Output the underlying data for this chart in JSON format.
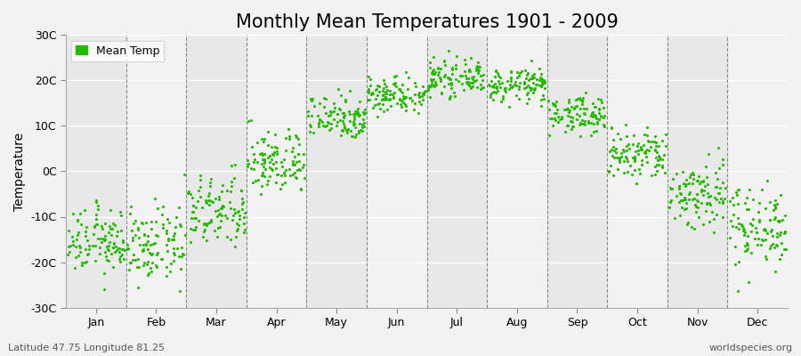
{
  "title": "Monthly Mean Temperatures 1901 - 2009",
  "ylabel": "Temperature",
  "xlabel_labels": [
    "Jan",
    "Feb",
    "Mar",
    "Apr",
    "May",
    "Jun",
    "Jul",
    "Aug",
    "Sep",
    "Oct",
    "Nov",
    "Dec"
  ],
  "ytick_labels": [
    "-30C",
    "-20C",
    "-10C",
    "0C",
    "10C",
    "20C",
    "30C"
  ],
  "ytick_values": [
    -30,
    -20,
    -10,
    0,
    10,
    20,
    30
  ],
  "ylim": [
    -30,
    30
  ],
  "xlim": [
    0,
    12
  ],
  "marker_color": "#22bb00",
  "background_color": "#f2f2f2",
  "band_colors": [
    "#e8e8e8",
    "#f2f2f2"
  ],
  "dashed_line_color": "#888888",
  "legend_label": "Mean Temp",
  "footer_left": "Latitude 47.75 Longitude 81.25",
  "footer_right": "worldspecies.org",
  "title_fontsize": 15,
  "label_fontsize": 10,
  "tick_fontsize": 9,
  "footer_fontsize": 8,
  "num_years": 109,
  "monthly_means": [
    -15.5,
    -16.5,
    -9,
    2,
    12,
    17,
    20.5,
    19,
    12.5,
    3.5,
    -5,
    -12
  ],
  "monthly_stds": [
    3.5,
    4.0,
    4.0,
    3.5,
    2.5,
    2.0,
    1.8,
    1.8,
    2.0,
    3.0,
    4.0,
    4.5
  ]
}
